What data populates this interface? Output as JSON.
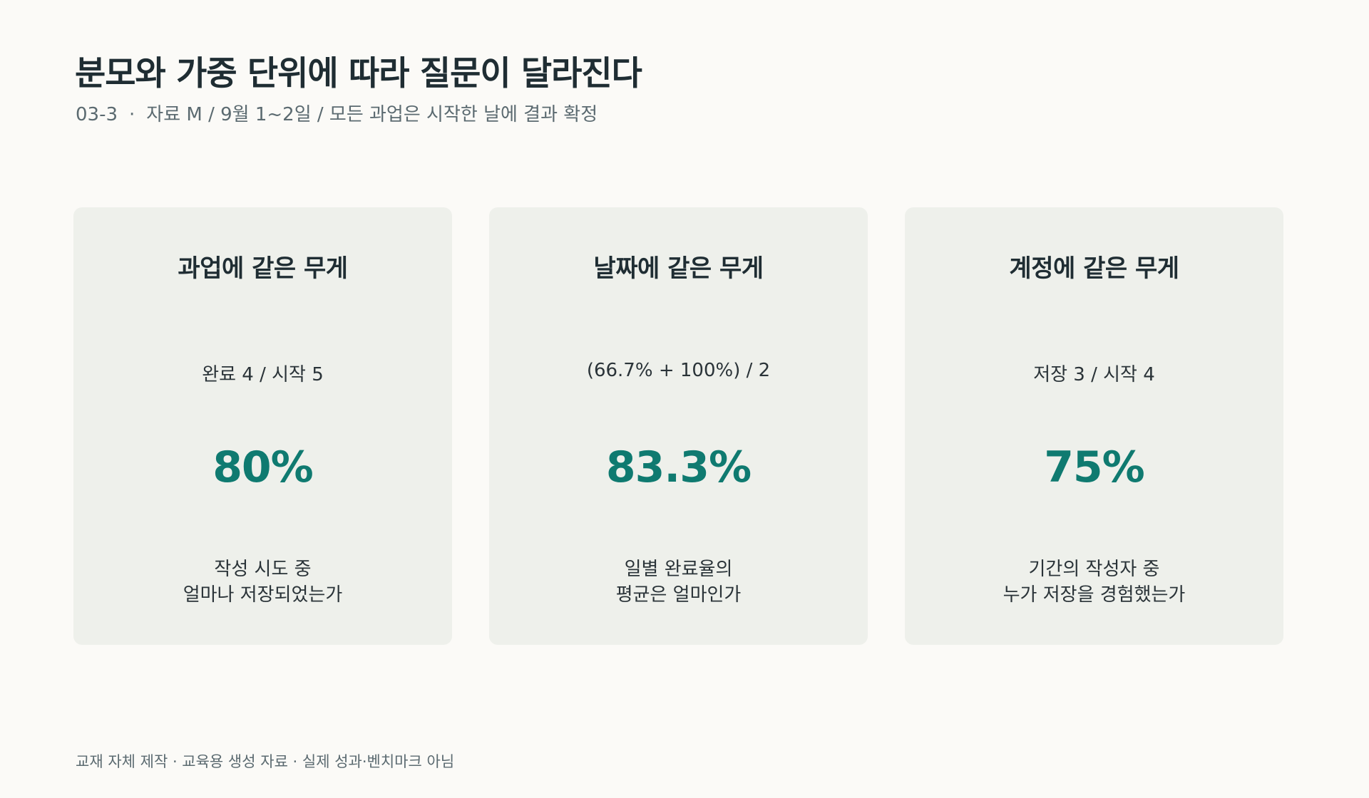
{
  "header": {
    "title": "분모와 가중 단위에 따라 질문이 달라진다",
    "code": "03-3",
    "separator": "·",
    "description": "자료 M / 9월 1~2일 / 모든 과업은 시작한 날에 결과 확정"
  },
  "cards": [
    {
      "title": "과업에 같은 무게",
      "formula": "완료 4 / 시작 5",
      "value": "80%",
      "question_line1": "작성 시도 중",
      "question_line2": "얼마나 저장되었는가"
    },
    {
      "title": "날짜에 같은 무게",
      "formula": "(66.7% + 100%) / 2",
      "value": "83.3%",
      "question_line1": "일별 완료율의",
      "question_line2": "평균은 얼마인가"
    },
    {
      "title": "계정에 같은 무게",
      "formula": "저장 3 / 시작 4",
      "value": "75%",
      "question_line1": "기간의 작성자 중",
      "question_line2": "누가 저장을 경험했는가"
    }
  ],
  "footer": {
    "note": "교재 자체 제작 · 교육용 생성 자료 · 실제 성과·벤치마크 아님"
  },
  "colors": {
    "background": "#fbfaf7",
    "card_background": "#eef0eb",
    "accent": "#0f7a70",
    "text": "#1f2d33",
    "muted": "#5b6a70"
  }
}
